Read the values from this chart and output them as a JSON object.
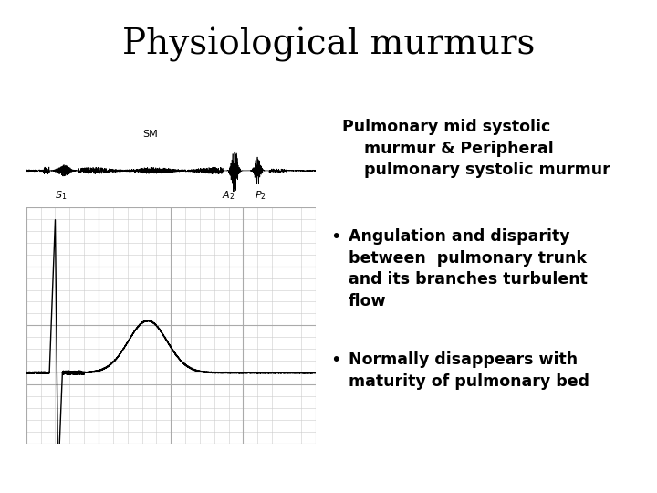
{
  "title": "Physiological murmurs",
  "title_fontsize": 28,
  "background_color": "#ffffff",
  "subtitle": "Pulmonary mid systolic\n    murmur & Peripheral\n    pulmonary systolic murmur",
  "subtitle_fontsize": 12.5,
  "bullet1": "Angulation and disparity\nbetween  pulmonary trunk\nand its branches turbulent\nflow",
  "bullet1_fontsize": 12.5,
  "bullet2": "Normally disappears with\nmaturity of pulmonary bed",
  "bullet2_fontsize": 12.5,
  "bullet_dot_fontsize": 14,
  "text_color": "#000000",
  "grid_minor_color": "#cccccc",
  "grid_major_color": "#aaaaaa",
  "grid_bg_color": "#f5f5f5"
}
